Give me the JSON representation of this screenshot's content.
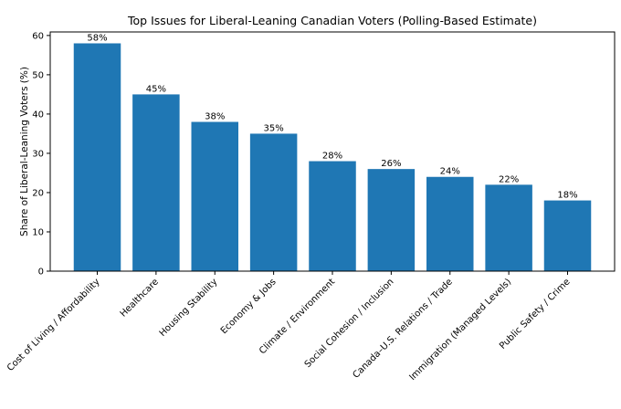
{
  "chart_data": {
    "type": "bar",
    "title": "Top Issues for Liberal-Leaning Canadian Voters (Polling-Based Estimate)",
    "xlabel": "",
    "ylabel": "Share of Liberal-Leaning Voters (%)",
    "categories": [
      "Cost of Living / Affordability",
      "Healthcare",
      "Housing Stability",
      "Economy & Jobs",
      "Climate / Environment",
      "Social Cohesion / Inclusion",
      "Canada–U.S. Relations / Trade",
      "Immigration (Managed Levels)",
      "Public Safety / Crime"
    ],
    "values": [
      58,
      45,
      38,
      35,
      28,
      26,
      24,
      22,
      18
    ],
    "data_labels": [
      "58%",
      "45%",
      "38%",
      "35%",
      "28%",
      "26%",
      "24%",
      "22%",
      "18%"
    ],
    "ylim": [
      0,
      60.9
    ],
    "yticks": [
      "0",
      "10",
      "20",
      "30",
      "40",
      "50",
      "60"
    ],
    "grid": false,
    "bar_color": "#1f77b4"
  }
}
